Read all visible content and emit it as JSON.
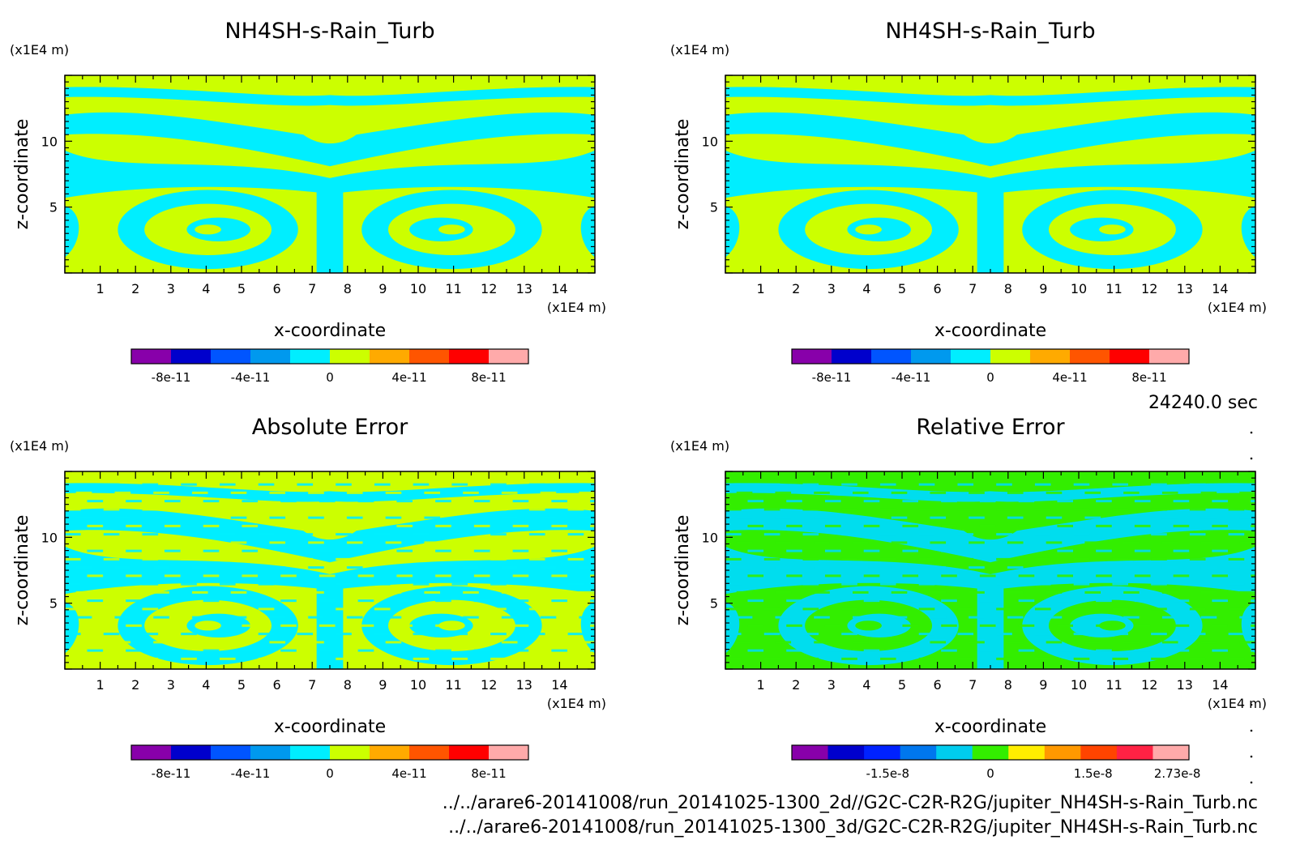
{
  "colors": {
    "lime": "#ccff00",
    "cyan": "#00eeff",
    "green": "#33ee00",
    "sky": "#00ddee"
  },
  "time_label": "24240.0 sec",
  "files": [
    "../../arare6-20141008/run_20141025-1300_2d//G2C-C2R-R2G/jupiter_NH4SH-s-Rain_Turb.nc",
    "../../arare6-20141008/run_20141025-1300_3d/G2C-C2R-R2G/jupiter_NH4SH-s-Rain_Turb.nc"
  ],
  "chart_data": [
    {
      "type": "heatmap",
      "title": "NH4SH-s-Rain_Turb",
      "xlabel": "x-coordinate",
      "ylabel": "z-coordinate",
      "x_unit": "(x1E4 m)",
      "y_unit": "(x1E4 m)",
      "xlim": [
        0,
        15
      ],
      "ylim": [
        0,
        15
      ],
      "x_ticks": [
        1,
        2,
        3,
        4,
        5,
        6,
        7,
        8,
        9,
        10,
        11,
        12,
        13,
        14
      ],
      "y_ticks": [
        5,
        10
      ],
      "colorbar": {
        "colors": [
          "#8800aa",
          "#0000cc",
          "#0055ff",
          "#0099ee",
          "#00eeff",
          "#ccff00",
          "#ffaa00",
          "#ff5500",
          "#ff0000",
          "#ffaaaa"
        ],
        "labels": [
          "-8e-11",
          "-4e-11",
          "0",
          "4e-11",
          "8e-11"
        ],
        "label_positions": [
          -8e-11,
          -4e-11,
          0,
          4e-11,
          8e-11
        ],
        "range": [
          -1e-10,
          1e-10
        ]
      },
      "pattern": "field"
    },
    {
      "type": "heatmap",
      "title": "NH4SH-s-Rain_Turb",
      "xlabel": "x-coordinate",
      "ylabel": "z-coordinate",
      "x_unit": "(x1E4 m)",
      "y_unit": "(x1E4 m)",
      "xlim": [
        0,
        15
      ],
      "ylim": [
        0,
        15
      ],
      "x_ticks": [
        1,
        2,
        3,
        4,
        5,
        6,
        7,
        8,
        9,
        10,
        11,
        12,
        13,
        14
      ],
      "y_ticks": [
        5,
        10
      ],
      "colorbar": {
        "colors": [
          "#8800aa",
          "#0000cc",
          "#0055ff",
          "#0099ee",
          "#00eeff",
          "#ccff00",
          "#ffaa00",
          "#ff5500",
          "#ff0000",
          "#ffaaaa"
        ],
        "labels": [
          "-8e-11",
          "-4e-11",
          "0",
          "4e-11",
          "8e-11"
        ],
        "label_positions": [
          -8e-11,
          -4e-11,
          0,
          4e-11,
          8e-11
        ],
        "range": [
          -1e-10,
          1e-10
        ]
      },
      "pattern": "field"
    },
    {
      "type": "heatmap",
      "title": "Absolute Error",
      "xlabel": "x-coordinate",
      "ylabel": "z-coordinate",
      "x_unit": "(x1E4 m)",
      "y_unit": "(x1E4 m)",
      "xlim": [
        0,
        15
      ],
      "ylim": [
        0,
        15
      ],
      "x_ticks": [
        1,
        2,
        3,
        4,
        5,
        6,
        7,
        8,
        9,
        10,
        11,
        12,
        13,
        14
      ],
      "y_ticks": [
        5,
        10
      ],
      "colorbar": {
        "colors": [
          "#8800aa",
          "#0000cc",
          "#0055ff",
          "#0099ee",
          "#00eeff",
          "#ccff00",
          "#ffaa00",
          "#ff5500",
          "#ff0000",
          "#ffaaaa"
        ],
        "labels": [
          "-8e-11",
          "-4e-11",
          "0",
          "4e-11",
          "8e-11"
        ],
        "label_positions": [
          -8e-11,
          -4e-11,
          0,
          4e-11,
          8e-11
        ],
        "range": [
          -1e-10,
          1e-10
        ]
      },
      "pattern": "abserr"
    },
    {
      "type": "heatmap",
      "title": "Relative Error",
      "xlabel": "x-coordinate",
      "ylabel": "z-coordinate",
      "x_unit": "(x1E4 m)",
      "y_unit": "(x1E4 m)",
      "xlim": [
        0,
        15
      ],
      "ylim": [
        0,
        15
      ],
      "x_ticks": [
        1,
        2,
        3,
        4,
        5,
        6,
        7,
        8,
        9,
        10,
        11,
        12,
        13,
        14
      ],
      "y_ticks": [
        5,
        10
      ],
      "colorbar": {
        "colors": [
          "#8800aa",
          "#0000cc",
          "#0022ff",
          "#0077ee",
          "#00ccee",
          "#33ee00",
          "#ffee00",
          "#ff9900",
          "#ff4400",
          "#ff2244",
          "#ffaaaa"
        ],
        "labels": [
          "-1.5e-8",
          "0",
          "1.5e-8",
          "2.73e-8"
        ],
        "label_positions": [
          -1.5e-08,
          0,
          1.5e-08,
          2.73e-08
        ],
        "range": [
          -2.9e-08,
          2.9e-08
        ]
      },
      "pattern": "relerr"
    }
  ]
}
